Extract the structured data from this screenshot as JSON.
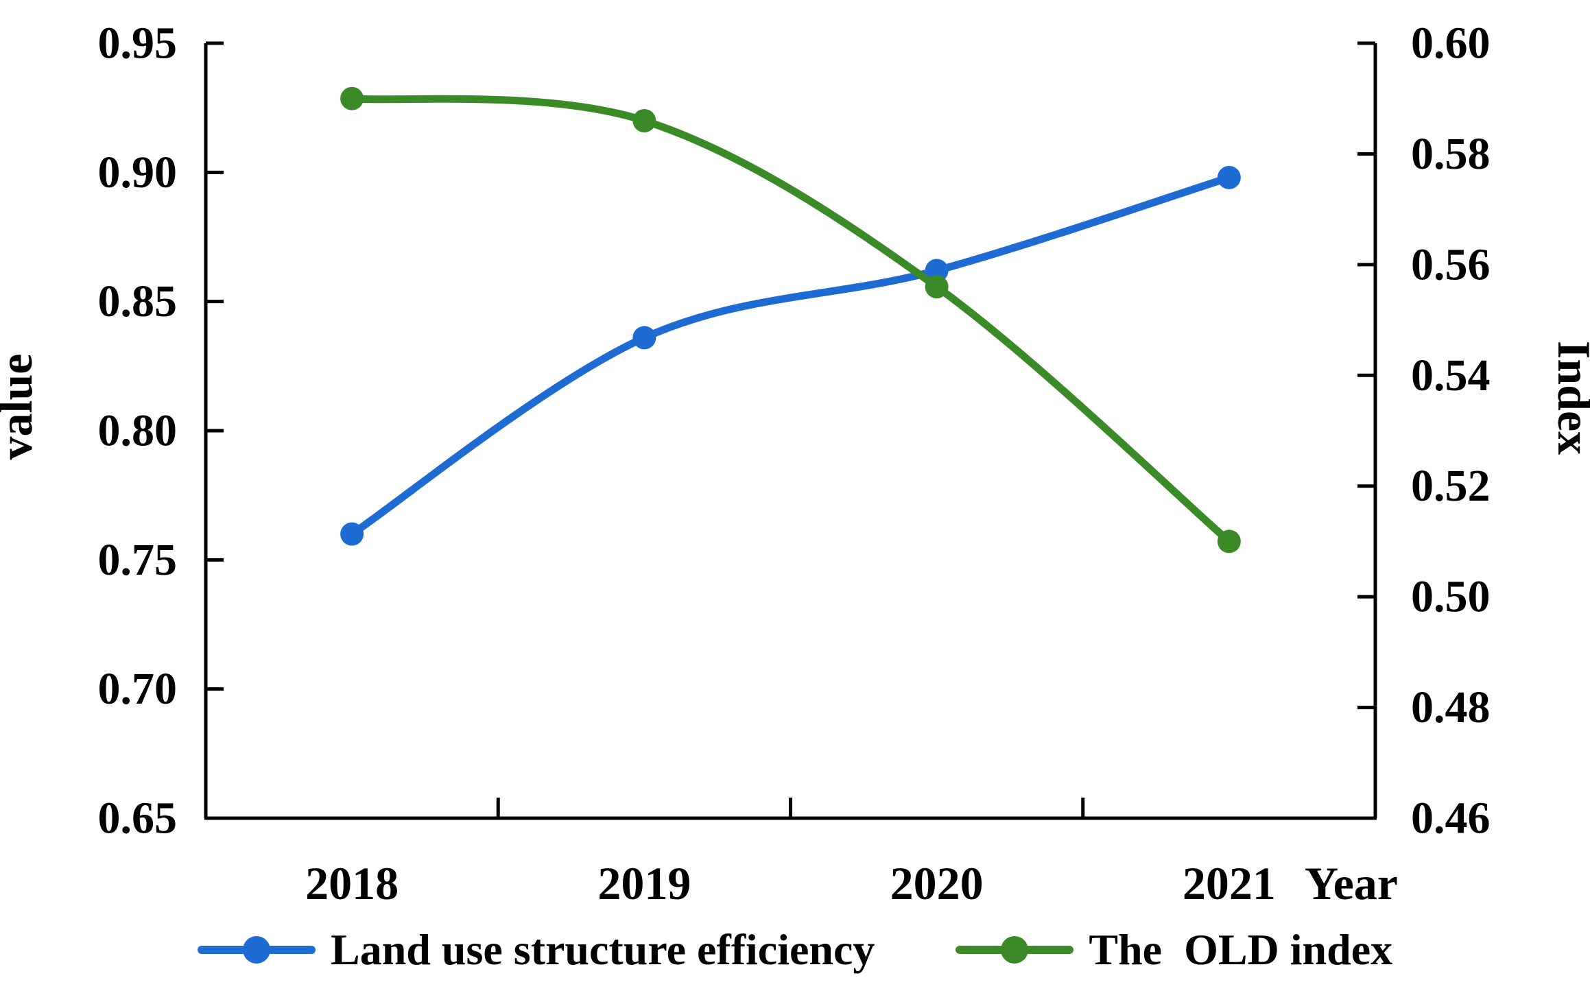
{
  "chart_data": {
    "type": "line",
    "categories": [
      "2018",
      "2019",
      "2020",
      "2021"
    ],
    "series": [
      {
        "name": "Land use structure efficiency",
        "axis": "left",
        "color": "#1d6bd3",
        "marker": "circle",
        "values": [
          0.76,
          0.836,
          0.862,
          0.898
        ]
      },
      {
        "name": "The  OLD index",
        "axis": "right",
        "color": "#3a8a28",
        "marker": "circle",
        "values": [
          0.59,
          0.586,
          0.556,
          0.51
        ]
      }
    ],
    "left_axis": {
      "title": "value",
      "min": 0.65,
      "max": 0.95,
      "step": 0.05,
      "tick_labels": [
        "0.65",
        "0.70",
        "0.75",
        "0.80",
        "0.85",
        "0.90",
        "0.95"
      ]
    },
    "right_axis": {
      "title": "Index",
      "min": 0.46,
      "max": 0.6,
      "step": 0.02,
      "tick_labels": [
        "0.46",
        "0.48",
        "0.50",
        "0.52",
        "0.54",
        "0.56",
        "0.58",
        "0.60"
      ]
    },
    "x_axis": {
      "title": "Year",
      "tick_labels": [
        "2018",
        "2019",
        "2020",
        "2021"
      ]
    },
    "legend_position": "bottom",
    "grid": false,
    "axis_color": "#000000",
    "background_color": "#ffffff"
  }
}
